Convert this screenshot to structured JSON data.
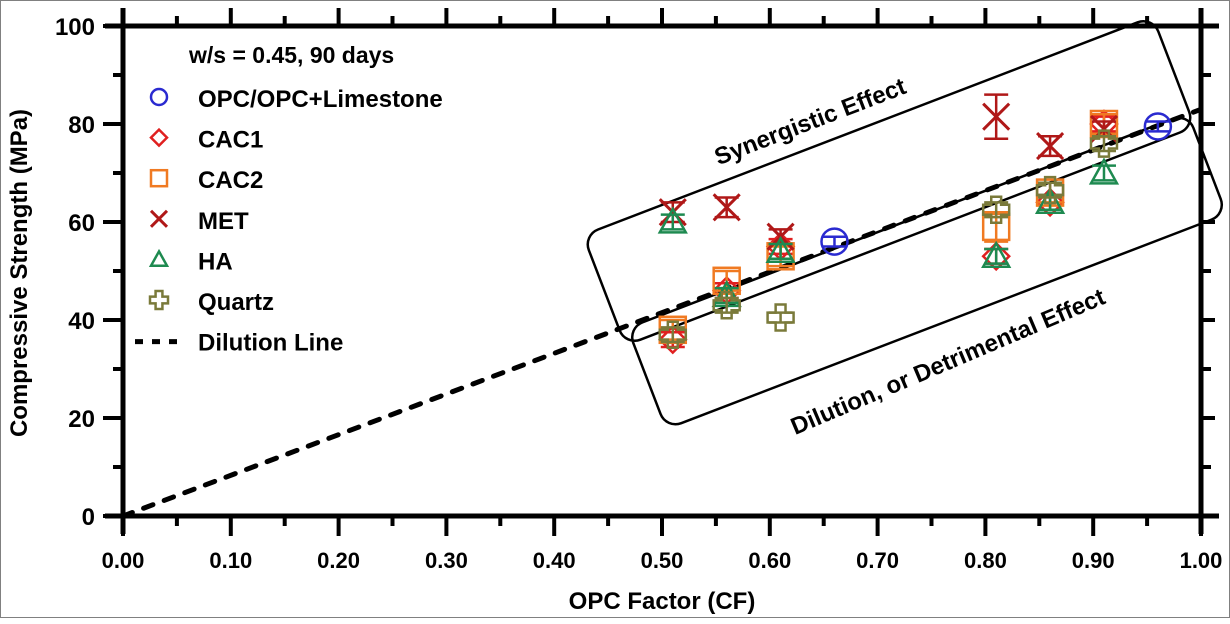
{
  "chart_data": {
    "type": "scatter",
    "title": "",
    "annotation_header": "w/s = 0.45, 90 days",
    "xlabel": "OPC Factor (CF)",
    "ylabel": "Compressive Strength (MPa)",
    "xlim": [
      0,
      1.0
    ],
    "ylim": [
      0,
      100
    ],
    "xticks": [
      "0.00",
      "0.10",
      "0.20",
      "0.30",
      "0.40",
      "0.50",
      "0.60",
      "0.70",
      "0.80",
      "0.90",
      "1.00"
    ],
    "yticks": [
      "0",
      "20",
      "40",
      "60",
      "80",
      "100"
    ],
    "grid": false,
    "legend_position": "top-left",
    "series": [
      {
        "name": "OPC/OPC+Limestone",
        "marker": "circle",
        "color": "#2a2ad0",
        "points": [
          {
            "x": 0.66,
            "y": 56,
            "err": 1
          },
          {
            "x": 0.96,
            "y": 79.5,
            "err": 1
          }
        ]
      },
      {
        "name": "CAC1",
        "marker": "diamond",
        "color": "#e02020",
        "points": [
          {
            "x": 0.51,
            "y": 36,
            "err": 1.5
          },
          {
            "x": 0.56,
            "y": 46,
            "err": 1.5
          },
          {
            "x": 0.61,
            "y": 55,
            "err": 1.5
          },
          {
            "x": 0.81,
            "y": 53,
            "err": 1.5
          },
          {
            "x": 0.86,
            "y": 64,
            "err": 1.5
          },
          {
            "x": 0.91,
            "y": 80,
            "err": 1.5
          }
        ]
      },
      {
        "name": "CAC2",
        "marker": "square",
        "color": "#f07a22",
        "points": [
          {
            "x": 0.51,
            "y": 38,
            "err": 2
          },
          {
            "x": 0.56,
            "y": 48,
            "err": 2
          },
          {
            "x": 0.61,
            "y": 53,
            "err": 2
          },
          {
            "x": 0.81,
            "y": 59,
            "err": 3
          },
          {
            "x": 0.86,
            "y": 66,
            "err": 2
          },
          {
            "x": 0.91,
            "y": 80,
            "err": 2
          }
        ]
      },
      {
        "name": "MET",
        "marker": "x",
        "color": "#b01818",
        "points": [
          {
            "x": 0.51,
            "y": 62,
            "err": 2
          },
          {
            "x": 0.56,
            "y": 63,
            "err": 2
          },
          {
            "x": 0.61,
            "y": 57,
            "err": 1.5
          },
          {
            "x": 0.81,
            "y": 81.5,
            "err": 4.5
          },
          {
            "x": 0.86,
            "y": 75.5,
            "err": 2
          },
          {
            "x": 0.91,
            "y": 79,
            "err": 1.5
          }
        ]
      },
      {
        "name": "HA",
        "marker": "triangle",
        "color": "#1e8a50",
        "points": [
          {
            "x": 0.51,
            "y": 60,
            "err": 1.5
          },
          {
            "x": 0.56,
            "y": 45,
            "err": 1.5
          },
          {
            "x": 0.61,
            "y": 54,
            "err": 1.5
          },
          {
            "x": 0.81,
            "y": 53,
            "err": 1.5
          },
          {
            "x": 0.86,
            "y": 64,
            "err": 1.5
          },
          {
            "x": 0.91,
            "y": 70,
            "err": 1.5
          }
        ]
      },
      {
        "name": "Quartz",
        "marker": "plus",
        "color": "#7a7a3a",
        "points": [
          {
            "x": 0.51,
            "y": 37,
            "err": 1.5
          },
          {
            "x": 0.56,
            "y": 43,
            "err": 1.5
          },
          {
            "x": 0.61,
            "y": 40.5,
            "err": 1
          },
          {
            "x": 0.81,
            "y": 62.5,
            "err": 1.5
          },
          {
            "x": 0.86,
            "y": 66.5,
            "err": 1.5
          },
          {
            "x": 0.91,
            "y": 76,
            "err": 1.5
          }
        ]
      }
    ],
    "reference_lines": [
      {
        "name": "Dilution Line",
        "style": "dashed",
        "color": "#000000",
        "from": [
          0,
          0
        ],
        "to": [
          1.0,
          83
        ]
      }
    ],
    "annotations": [
      {
        "text": "Synergistic Effect",
        "region": "above dilution line"
      },
      {
        "text": "Dilution, or Detrimental Effect",
        "region": "below dilution line"
      }
    ]
  }
}
